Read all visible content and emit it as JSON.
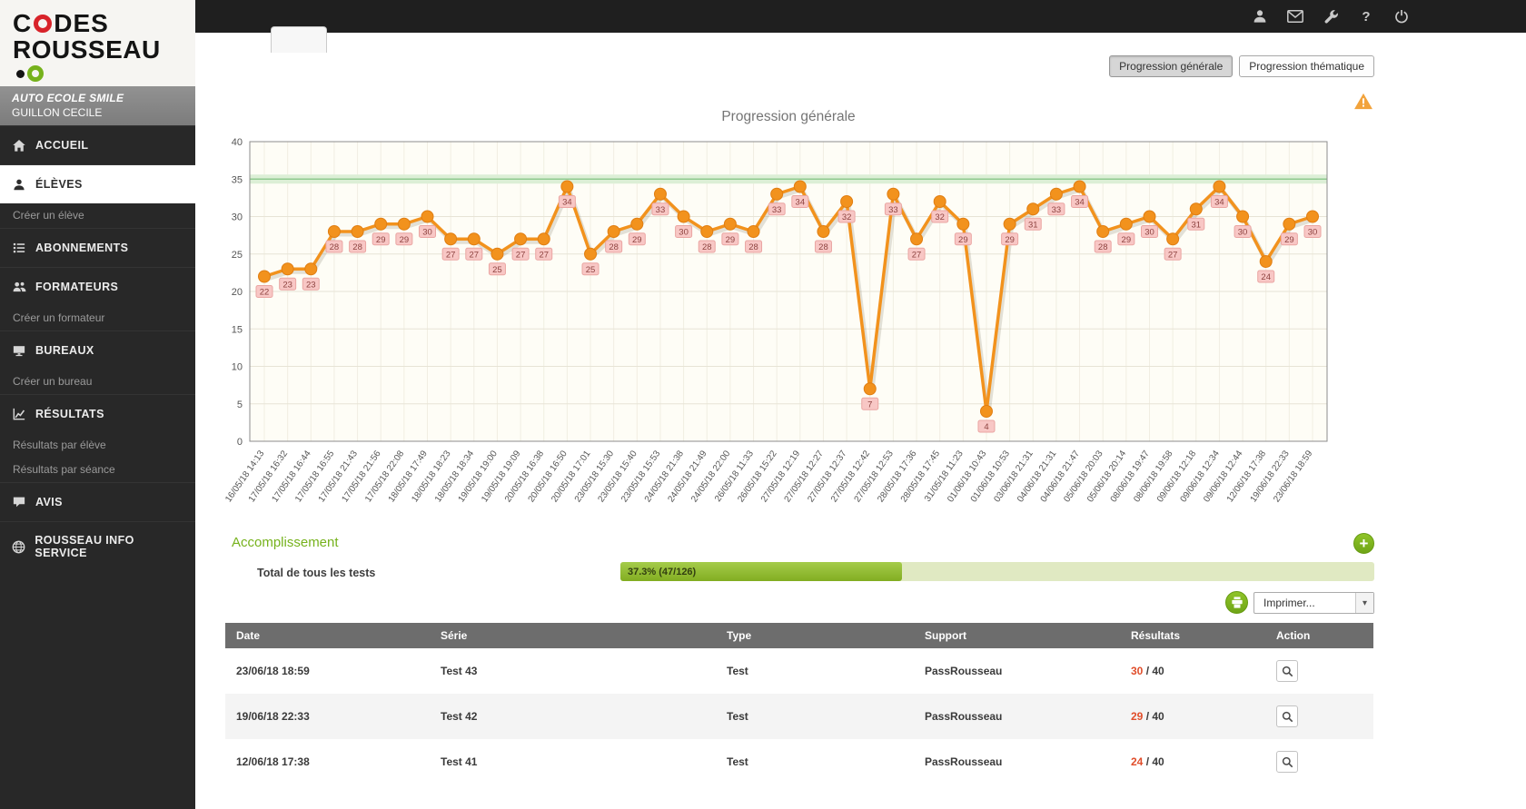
{
  "topbar": {
    "icon_names": [
      "user",
      "mail",
      "wrench",
      "help",
      "power"
    ],
    "help_glyph": "?"
  },
  "sidebar": {
    "logo": {
      "line1_pre": "C",
      "line1_post": "DES",
      "line2": "ROUSSEAU"
    },
    "school": {
      "name": "AUTO ECOLE SMILE",
      "user": "GUILLON CECILE"
    },
    "items": [
      {
        "id": "accueil",
        "label": "ACCUEIL",
        "icon": "home",
        "type": "main"
      },
      {
        "id": "eleves",
        "label": "ÉLÈVES",
        "icon": "user",
        "type": "main",
        "active": true
      },
      {
        "id": "creer-un-eleve",
        "label": "Créer un élève",
        "type": "sub"
      },
      {
        "id": "abonnements",
        "label": "ABONNEMENTS",
        "icon": "list",
        "type": "main"
      },
      {
        "id": "formateurs",
        "label": "FORMATEURS",
        "icon": "users",
        "type": "main"
      },
      {
        "id": "creer-un-formateur",
        "label": "Créer un formateur",
        "type": "sub"
      },
      {
        "id": "bureaux",
        "label": "BUREAUX",
        "icon": "desk",
        "type": "main"
      },
      {
        "id": "creer-un-bureau",
        "label": "Créer un bureau",
        "type": "sub"
      },
      {
        "id": "resultats",
        "label": "RÉSULTATS",
        "icon": "chart",
        "type": "main"
      },
      {
        "id": "resultats-par-eleve",
        "label": "Résultats par élève",
        "type": "sub"
      },
      {
        "id": "resultats-par-seance",
        "label": "Résultats par séance",
        "type": "sub"
      },
      {
        "id": "avis",
        "label": "AVIS",
        "icon": "comment",
        "type": "main"
      },
      {
        "id": "rousseau-info-service",
        "label": "ROUSSEAU INFO SERVICE",
        "icon": "globe",
        "type": "main"
      }
    ]
  },
  "view_toggle": {
    "general": "Progression générale",
    "thematique": "Progression thématique"
  },
  "chart_data": {
    "type": "line",
    "title": "Progression générale",
    "x": [
      "16/05/18 14:13",
      "17/05/18 16:32",
      "17/05/18 16:44",
      "17/05/18 16:55",
      "17/05/18 21:43",
      "17/05/18 21:56",
      "17/05/18 22:08",
      "18/05/18 17:49",
      "18/05/18 18:23",
      "18/05/18 18:34",
      "19/05/18 19:00",
      "19/05/18 19:09",
      "20/05/18 16:38",
      "20/05/18 16:50",
      "20/05/18 17:01",
      "23/05/18 15:30",
      "23/05/18 15:40",
      "23/05/18 15:53",
      "24/05/18 21:38",
      "24/05/18 21:49",
      "24/05/18 22:00",
      "26/05/18 11:33",
      "26/05/18 15:22",
      "27/05/18 12:19",
      "27/05/18 12:27",
      "27/05/18 12:37",
      "27/05/18 12:42",
      "27/05/18 12:53",
      "28/05/18 17:36",
      "28/05/18 17:45",
      "31/05/18 11:23",
      "01/06/18 10:43",
      "01/06/18 10:53",
      "03/06/18 21:31",
      "04/06/18 21:31",
      "04/06/18 21:47",
      "05/06/18 20:03",
      "05/06/18 20:14",
      "08/06/18 19:47",
      "08/06/18 19:58",
      "09/06/18 12:18",
      "09/06/18 12:34",
      "09/06/18 12:44",
      "12/06/18 17:38",
      "19/06/18 22:33",
      "23/06/18 18:59"
    ],
    "values": [
      22,
      23,
      23,
      28,
      28,
      29,
      29,
      30,
      27,
      27,
      25,
      27,
      27,
      34,
      25,
      28,
      29,
      33,
      30,
      28,
      29,
      28,
      33,
      34,
      28,
      32,
      7,
      33,
      27,
      32,
      29,
      4,
      29,
      31,
      33,
      34,
      28,
      29,
      30,
      27,
      31,
      34,
      30,
      24,
      29,
      30
    ],
    "ylim": [
      0,
      40
    ],
    "yticks": [
      0,
      5,
      10,
      15,
      20,
      25,
      30,
      35,
      40
    ],
    "threshold": 35,
    "grid": true,
    "legend": "none",
    "line_color": "#f2921d",
    "point_color": "#f2921d",
    "threshold_color": "#8fca8f",
    "label_bg": "#f8c7c5"
  },
  "accomplissement": {
    "heading": "Accomplissement",
    "total_label": "Total de tous les tests",
    "progress_text": "37.3% (47/126)",
    "progress_pct": 37.3,
    "plus_glyph": "+"
  },
  "print": {
    "label": "Imprimer...",
    "arrow_glyph": "▾"
  },
  "table": {
    "headers": [
      "Date",
      "Série",
      "Type",
      "Support",
      "Résultats",
      "Action"
    ],
    "rows": [
      {
        "date": "23/06/18 18:59",
        "serie": "Test 43",
        "type": "Test",
        "support": "PassRousseau",
        "score": "30",
        "score_total": "/ 40"
      },
      {
        "date": "19/06/18 22:33",
        "serie": "Test 42",
        "type": "Test",
        "support": "PassRousseau",
        "score": "29",
        "score_total": "/ 40"
      },
      {
        "date": "12/06/18 17:38",
        "serie": "Test 41",
        "type": "Test",
        "support": "PassRousseau",
        "score": "24",
        "score_total": "/ 40"
      }
    ]
  },
  "colors": {
    "accent_green": "#76b21c",
    "orange": "#f2921d",
    "score_red": "#e04e2b",
    "sidebar_bg": "#282828"
  }
}
